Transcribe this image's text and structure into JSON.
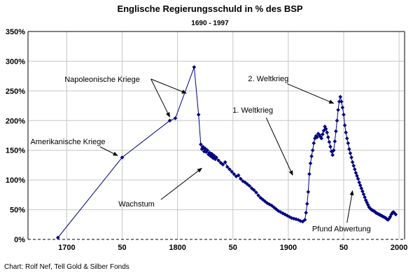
{
  "title": "Englische Regierungsschuld in % des BSP",
  "subtitle": "1690 - 1997",
  "caption": "Chart: Rolf Nef, Tell Gold & Silber Fonds",
  "chart_data": {
    "type": "scatter",
    "title": "Englische Regierungsschuld in % des BSP",
    "subtitle": "1690 - 1997",
    "xlabel": "",
    "ylabel": "",
    "x_range": [
      1665,
      2005
    ],
    "y_range": [
      0,
      350
    ],
    "y_tick_step": 50,
    "y_tick_suffix": "%",
    "grid": true,
    "legend_position": "none",
    "series_color": "#000080",
    "grid_color": "#c6c6c6",
    "x_ticks": [
      {
        "v": 1700,
        "label": "1700"
      },
      {
        "v": 1750,
        "label": "50"
      },
      {
        "v": 1800,
        "label": "1800"
      },
      {
        "v": 1850,
        "label": "50"
      },
      {
        "v": 1900,
        "label": "1900"
      },
      {
        "v": 1950,
        "label": "50"
      },
      {
        "v": 2000,
        "label": "2000"
      }
    ],
    "series": [
      {
        "name": "Regierungsschuld in % des BSP",
        "marker": "diamond",
        "points": [
          [
            1692,
            3
          ],
          [
            1750,
            138
          ],
          [
            1793,
            200
          ],
          [
            1798,
            204
          ],
          [
            1815,
            290
          ],
          [
            1819,
            210
          ],
          [
            1821,
            160
          ],
          [
            1822,
            152
          ],
          [
            1823,
            156
          ],
          [
            1824,
            148
          ],
          [
            1825,
            153
          ],
          [
            1826,
            147
          ],
          [
            1827,
            150
          ],
          [
            1828,
            143
          ],
          [
            1829,
            146
          ],
          [
            1830,
            140
          ],
          [
            1831,
            144
          ],
          [
            1832,
            137
          ],
          [
            1833,
            141
          ],
          [
            1834,
            135
          ],
          [
            1835,
            138
          ],
          [
            1837,
            133
          ],
          [
            1839,
            129
          ],
          [
            1841,
            126
          ],
          [
            1843,
            130
          ],
          [
            1845,
            122
          ],
          [
            1847,
            118
          ],
          [
            1849,
            114
          ],
          [
            1851,
            110
          ],
          [
            1853,
            106
          ],
          [
            1855,
            108
          ],
          [
            1857,
            102
          ],
          [
            1859,
            98
          ],
          [
            1861,
            96
          ],
          [
            1863,
            93
          ],
          [
            1865,
            90
          ],
          [
            1867,
            86
          ],
          [
            1869,
            83
          ],
          [
            1871,
            79
          ],
          [
            1873,
            74
          ],
          [
            1875,
            70
          ],
          [
            1877,
            67
          ],
          [
            1879,
            64
          ],
          [
            1881,
            61
          ],
          [
            1883,
            59
          ],
          [
            1885,
            57
          ],
          [
            1887,
            54
          ],
          [
            1889,
            51
          ],
          [
            1891,
            48
          ],
          [
            1893,
            46
          ],
          [
            1895,
            44
          ],
          [
            1897,
            42
          ],
          [
            1899,
            40
          ],
          [
            1901,
            38
          ],
          [
            1903,
            36
          ],
          [
            1905,
            35
          ],
          [
            1907,
            34
          ],
          [
            1909,
            33
          ],
          [
            1911,
            31
          ],
          [
            1913,
            30
          ],
          [
            1915,
            33
          ],
          [
            1916,
            45
          ],
          [
            1917,
            60
          ],
          [
            1918,
            80
          ],
          [
            1919,
            110
          ],
          [
            1920,
            128
          ],
          [
            1921,
            140
          ],
          [
            1922,
            150
          ],
          [
            1923,
            162
          ],
          [
            1924,
            170
          ],
          [
            1925,
            174
          ],
          [
            1926,
            172
          ],
          [
            1927,
            178
          ],
          [
            1928,
            176
          ],
          [
            1929,
            173
          ],
          [
            1930,
            170
          ],
          [
            1931,
            177
          ],
          [
            1932,
            183
          ],
          [
            1933,
            190
          ],
          [
            1934,
            186
          ],
          [
            1935,
            180
          ],
          [
            1936,
            172
          ],
          [
            1937,
            164
          ],
          [
            1938,
            156
          ],
          [
            1939,
            148
          ],
          [
            1940,
            142
          ],
          [
            1941,
            150
          ],
          [
            1942,
            165
          ],
          [
            1943,
            182
          ],
          [
            1944,
            200
          ],
          [
            1945,
            218
          ],
          [
            1946,
            232
          ],
          [
            1947,
            240
          ],
          [
            1948,
            232
          ],
          [
            1949,
            222
          ],
          [
            1950,
            210
          ],
          [
            1951,
            192
          ],
          [
            1952,
            180
          ],
          [
            1953,
            170
          ],
          [
            1954,
            162
          ],
          [
            1955,
            152
          ],
          [
            1956,
            145
          ],
          [
            1957,
            138
          ],
          [
            1958,
            130
          ],
          [
            1959,
            124
          ],
          [
            1960,
            118
          ],
          [
            1961,
            112
          ],
          [
            1962,
            107
          ],
          [
            1963,
            102
          ],
          [
            1964,
            96
          ],
          [
            1965,
            91
          ],
          [
            1966,
            86
          ],
          [
            1967,
            81
          ],
          [
            1968,
            76
          ],
          [
            1969,
            71
          ],
          [
            1970,
            66
          ],
          [
            1971,
            62
          ],
          [
            1972,
            58
          ],
          [
            1973,
            54
          ],
          [
            1974,
            52
          ],
          [
            1975,
            50
          ],
          [
            1976,
            49
          ],
          [
            1977,
            48
          ],
          [
            1978,
            47
          ],
          [
            1979,
            45
          ],
          [
            1980,
            44
          ],
          [
            1981,
            43
          ],
          [
            1982,
            42
          ],
          [
            1983,
            41
          ],
          [
            1984,
            40
          ],
          [
            1985,
            39
          ],
          [
            1986,
            38
          ],
          [
            1987,
            37
          ],
          [
            1988,
            36
          ],
          [
            1989,
            34
          ],
          [
            1990,
            33
          ],
          [
            1991,
            35
          ],
          [
            1992,
            38
          ],
          [
            1993,
            42
          ],
          [
            1994,
            45
          ],
          [
            1995,
            46
          ],
          [
            1996,
            44
          ],
          [
            1997,
            42
          ]
        ]
      }
    ],
    "annotations": [
      {
        "text": "Napoleonische Kriege",
        "label": [
          1732,
          270
        ],
        "arrows": [
          {
            "from": [
              1776,
              270
            ],
            "to": [
              1793,
              206
            ]
          },
          {
            "from": [
              1776,
              270
            ],
            "to": [
              1808,
              246
            ]
          }
        ]
      },
      {
        "text": "Amerikanische Kriege",
        "label": [
          1701,
          165
        ],
        "arrows": [
          {
            "from": [
              1730,
              156
            ],
            "to": [
              1746,
              141
            ]
          }
        ]
      },
      {
        "text": "Wachstum",
        "label": [
          1763,
          60
        ],
        "arrows": [
          {
            "from": [
              1785,
              67
            ],
            "to": [
              1822,
              120
            ]
          }
        ]
      },
      {
        "text": "1. Weltkrieg",
        "label": [
          1868,
          218
        ],
        "arrows": [
          {
            "from": [
              1880,
              205
            ],
            "to": [
              1904,
              108
            ]
          }
        ]
      },
      {
        "text": "2. Weltkrieg",
        "label": [
          1882,
          271
        ],
        "arrows": [
          {
            "from": [
              1899,
              262
            ],
            "to": [
              1941,
              229
            ]
          }
        ]
      },
      {
        "text": "Pfund Abwertung",
        "label": [
          1948,
          18
        ],
        "arrows": [
          {
            "from": [
              1953,
              28
            ],
            "to": [
              1958,
              82
            ]
          }
        ]
      }
    ]
  }
}
